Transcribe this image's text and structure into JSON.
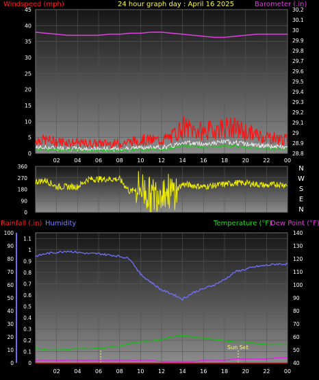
{
  "header": {
    "left_label": "Windspeed (mph)",
    "center_title": "24 hour graph day : April 16 2025",
    "right_label": "Barometer (.in)"
  },
  "colors": {
    "wind": "#ff1010",
    "gust_white": "#ffffff",
    "wind_green": "#1ec81e",
    "barometer": "#e040e0",
    "direction": "#f0f000",
    "humidity": "#7070ff",
    "temperature": "#10c010",
    "dewpoint": "#e020e0",
    "rain": "#ff2020",
    "sun_marker": "#ffff66",
    "tick_text": "#ffffff",
    "plot_top": "#161616",
    "plot_bottom": "#8c8c8c"
  },
  "wind_panel": {
    "y_ticks": [
      "45",
      "40",
      "35",
      "30",
      "25",
      "20",
      "15",
      "10",
      "5",
      "0"
    ],
    "baro_ticks": [
      "30.2",
      "30.1",
      "30",
      "29.9",
      "29.8",
      "29.7",
      "29.6",
      "29.5",
      "29.4",
      "29.3",
      "29.2",
      "29.1",
      "29",
      "28.9",
      "28.8"
    ],
    "x_ticks": [
      "02",
      "04",
      "06",
      "08",
      "10",
      "12",
      "14",
      "16",
      "18",
      "20",
      "22",
      "00"
    ]
  },
  "dir_panel": {
    "y_ticks": [
      "360",
      "270",
      "180",
      "90",
      "0"
    ],
    "compass": [
      "N",
      "W",
      "S",
      "E",
      "N"
    ]
  },
  "lower_panel": {
    "rain_label": "Rainfall (.in)",
    "humidity_label": "Humidity",
    "temp_label": "Temperature (°F)",
    "dew_label": "Dew Point (°F)",
    "hum_ticks": [
      "100",
      "90",
      "80",
      "70",
      "60",
      "50",
      "40",
      "30",
      "20",
      "10",
      "0"
    ],
    "rain_ticks": [
      "1.1",
      "1",
      "0.9",
      "0.8",
      "0.7",
      "0.6",
      "0.5",
      "0.4",
      "0.3",
      "0.2",
      "0.1",
      "0"
    ],
    "temp_ticks": [
      "140",
      "130",
      "120",
      "110",
      "100",
      "90",
      "80",
      "70",
      "60",
      "50",
      "40"
    ],
    "x_ticks": [
      "02",
      "04",
      "06",
      "08",
      "10",
      "12",
      "14",
      "16",
      "18",
      "20",
      "22",
      "00"
    ],
    "sunset_label": "Sun Set"
  },
  "chart_data": [
    {
      "type": "line",
      "title": "24 hour graph day : April 16 2025",
      "xlabel": "",
      "ylabel": "Windspeed (mph)",
      "y2label": "Barometer (.in)",
      "x_hours": [
        0,
        1,
        2,
        3,
        4,
        5,
        6,
        7,
        8,
        9,
        10,
        11,
        12,
        13,
        14,
        15,
        16,
        17,
        18,
        19,
        20,
        21,
        22,
        23,
        24
      ],
      "ylim": [
        0,
        45
      ],
      "y2lim": [
        28.8,
        30.2
      ],
      "series": [
        {
          "name": "Windspeed (mph)",
          "values": [
            4,
            4,
            3.5,
            3.5,
            3,
            3,
            3,
            3,
            3,
            3.5,
            4,
            4,
            4,
            5,
            8,
            7,
            6.5,
            7,
            8,
            7.5,
            6.5,
            5.5,
            5,
            4.5,
            4
          ]
        },
        {
          "name": "Barometer (.in)",
          "axis": "right",
          "values": [
            29.98,
            29.97,
            29.96,
            29.95,
            29.95,
            29.95,
            29.95,
            29.96,
            29.96,
            29.97,
            29.97,
            29.98,
            29.98,
            29.97,
            29.96,
            29.95,
            29.94,
            29.93,
            29.93,
            29.94,
            29.95,
            29.96,
            29.96,
            29.96,
            29.96
          ]
        }
      ]
    },
    {
      "type": "line",
      "title": "",
      "ylabel": "",
      "x_hours": [
        0,
        1,
        2,
        3,
        4,
        5,
        6,
        7,
        8,
        9,
        10,
        11,
        12,
        13,
        14,
        15,
        16,
        17,
        18,
        19,
        20,
        21,
        22,
        23,
        24
      ],
      "ylim": [
        0,
        360
      ],
      "series": [
        {
          "name": "",
          "values": [
            240,
            250,
            200,
            200,
            200,
            260,
            260,
            260,
            260,
            160,
            200,
            120,
            180,
            150,
            220,
            210,
            200,
            210,
            220,
            230,
            230,
            220,
            210,
            220,
            215
          ]
        }
      ]
    },
    {
      "type": "line",
      "title": "",
      "x_hours": [
        0,
        1,
        2,
        3,
        4,
        5,
        6,
        7,
        8,
        9,
        10,
        11,
        12,
        13,
        14,
        15,
        16,
        17,
        18,
        19,
        20,
        21,
        22,
        23,
        24
      ],
      "series": [
        {
          "name": "Humidity",
          "axis": "humidity",
          "ylim": [
            0,
            100
          ],
          "values": [
            82,
            84,
            85,
            86,
            85,
            84,
            84,
            83,
            82,
            80,
            68,
            62,
            56,
            53,
            49,
            54,
            57,
            60,
            64,
            70,
            72,
            74,
            75,
            76,
            76
          ]
        },
        {
          "name": "Temperature (°F)",
          "axis": "right",
          "ylim": [
            40,
            140
          ],
          "values": [
            51,
            50,
            50,
            50,
            51,
            51,
            51,
            52,
            53,
            55,
            56,
            57,
            58,
            60,
            61,
            60,
            59,
            58,
            57,
            56,
            56,
            55,
            54,
            54,
            54
          ]
        },
        {
          "name": "Dew Point (°F)",
          "axis": "right",
          "ylim": [
            40,
            140
          ],
          "values": [
            42,
            42,
            42,
            42,
            42,
            42,
            42,
            42,
            42,
            42,
            42,
            42,
            41,
            41,
            41,
            41,
            42,
            42,
            42,
            43,
            43,
            43,
            43,
            44,
            44
          ]
        },
        {
          "name": "Rainfall (.in)",
          "axis": "rainfall",
          "ylim": [
            0,
            1.15
          ],
          "values": [
            0,
            0,
            0,
            0,
            0,
            0,
            0,
            0,
            0,
            0,
            0,
            0,
            0,
            0,
            0,
            0,
            0,
            0,
            0,
            0,
            0,
            0,
            0,
            0,
            0
          ]
        }
      ]
    }
  ]
}
